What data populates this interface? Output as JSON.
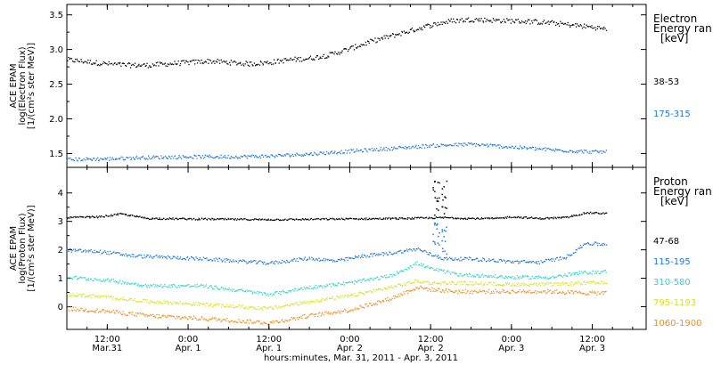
{
  "chart_data": [
    {
      "type": "scatter",
      "panel": "electron",
      "ylabel_lines": [
        "ACE EPAM",
        "log(Electron Flux)",
        "[1/(cm²s ster MeV)]"
      ],
      "ylim": [
        1.3,
        3.65
      ],
      "yticks": [
        1.5,
        2.0,
        2.5,
        3.0,
        3.5
      ],
      "ytick_labels": [
        "1.5",
        "2.0",
        "2.5",
        "3.0",
        "3.5"
      ],
      "legend": {
        "heading_lines": [
          "Electron",
          "Energy ran",
          "[keV]"
        ],
        "entries": [
          "38-53",
          "175-315"
        ]
      },
      "series": [
        {
          "name": "38-53",
          "color": "#000000",
          "noise": 0.035,
          "points": [
            [
              0,
              2.86
            ],
            [
              3,
              2.83
            ],
            [
              6,
              2.8
            ],
            [
              9,
              2.78
            ],
            [
              12,
              2.78
            ],
            [
              15,
              2.8
            ],
            [
              18,
              2.82
            ],
            [
              21,
              2.84
            ],
            [
              24,
              2.82
            ],
            [
              27,
              2.8
            ],
            [
              30,
              2.82
            ],
            [
              33,
              2.86
            ],
            [
              36,
              2.88
            ],
            [
              39,
              2.93
            ],
            [
              42,
              3.02
            ],
            [
              45,
              3.12
            ],
            [
              48,
              3.2
            ],
            [
              51,
              3.28
            ],
            [
              54,
              3.36
            ],
            [
              57,
              3.42
            ],
            [
              60,
              3.44
            ],
            [
              63,
              3.43
            ],
            [
              66,
              3.42
            ],
            [
              69,
              3.41
            ],
            [
              72,
              3.39
            ],
            [
              75,
              3.36
            ],
            [
              78,
              3.33
            ],
            [
              80,
              3.3
            ]
          ]
        },
        {
          "name": "175-315",
          "color": "#1f77d4",
          "noise": 0.025,
          "points": [
            [
              0,
              1.42
            ],
            [
              6,
              1.43
            ],
            [
              12,
              1.45
            ],
            [
              18,
              1.46
            ],
            [
              24,
              1.46
            ],
            [
              30,
              1.47
            ],
            [
              36,
              1.5
            ],
            [
              42,
              1.54
            ],
            [
              48,
              1.58
            ],
            [
              54,
              1.62
            ],
            [
              60,
              1.64
            ],
            [
              66,
              1.6
            ],
            [
              72,
              1.56
            ],
            [
              78,
              1.53
            ],
            [
              80,
              1.53
            ]
          ]
        }
      ]
    },
    {
      "type": "scatter",
      "panel": "proton",
      "ylabel_lines": [
        "ACE EPAM",
        "log(Proton Flux)",
        "[1/(cm²s ster MeV)]"
      ],
      "ylim": [
        -0.8,
        4.9
      ],
      "yticks": [
        0,
        1,
        2,
        3,
        4
      ],
      "ytick_labels": [
        "0",
        "1",
        "2",
        "3",
        "4"
      ],
      "legend": {
        "heading_lines": [
          "Proton",
          "Energy ran",
          "[keV]"
        ],
        "entries": [
          "47-68",
          "115-195",
          "310-580",
          "795-1193",
          "1060-1900"
        ]
      },
      "series": [
        {
          "name": "47-68",
          "color": "#000000",
          "noise": 0.03,
          "points": [
            [
              0,
              3.15
            ],
            [
              5,
              3.18
            ],
            [
              8,
              3.28
            ],
            [
              12,
              3.12
            ],
            [
              20,
              3.1
            ],
            [
              30,
              3.08
            ],
            [
              40,
              3.1
            ],
            [
              50,
              3.12
            ],
            [
              56,
              3.15
            ],
            [
              60,
              3.12
            ],
            [
              64,
              3.12
            ],
            [
              66,
              3.18
            ],
            [
              70,
              3.12
            ],
            [
              74,
              3.15
            ],
            [
              77,
              3.32
            ],
            [
              80,
              3.3
            ]
          ]
        },
        {
          "name": "115-195",
          "color": "#1f77d4",
          "noise": 0.06,
          "points": [
            [
              0,
              2.0
            ],
            [
              5,
              1.95
            ],
            [
              10,
              1.8
            ],
            [
              20,
              1.7
            ],
            [
              30,
              1.55
            ],
            [
              36,
              1.72
            ],
            [
              40,
              1.62
            ],
            [
              44,
              1.8
            ],
            [
              48,
              1.9
            ],
            [
              52,
              2.05
            ],
            [
              54,
              1.85
            ],
            [
              56,
              1.7
            ],
            [
              60,
              1.7
            ],
            [
              66,
              1.6
            ],
            [
              70,
              1.58
            ],
            [
              74,
              1.75
            ],
            [
              77,
              2.25
            ],
            [
              80,
              2.2
            ]
          ]
        },
        {
          "name": "310-580",
          "color": "#2ad6c8",
          "noise": 0.06,
          "points": [
            [
              0,
              1.05
            ],
            [
              6,
              0.95
            ],
            [
              12,
              0.75
            ],
            [
              20,
              0.75
            ],
            [
              30,
              0.45
            ],
            [
              36,
              0.7
            ],
            [
              42,
              0.85
            ],
            [
              48,
              1.1
            ],
            [
              52,
              1.55
            ],
            [
              54,
              1.35
            ],
            [
              58,
              1.15
            ],
            [
              66,
              1.05
            ],
            [
              72,
              1.05
            ],
            [
              76,
              1.2
            ],
            [
              80,
              1.25
            ]
          ]
        },
        {
          "name": "795-1193",
          "color": "#d8e21a",
          "noise": 0.06,
          "points": [
            [
              0,
              0.45
            ],
            [
              6,
              0.35
            ],
            [
              12,
              0.2
            ],
            [
              20,
              0.1
            ],
            [
              30,
              -0.05
            ],
            [
              36,
              0.2
            ],
            [
              42,
              0.4
            ],
            [
              48,
              0.7
            ],
            [
              52,
              0.92
            ],
            [
              54,
              0.85
            ],
            [
              58,
              0.85
            ],
            [
              66,
              0.8
            ],
            [
              72,
              0.8
            ],
            [
              76,
              0.85
            ],
            [
              80,
              0.85
            ]
          ]
        },
        {
          "name": "1060-1900",
          "color": "#f08c1e",
          "noise": 0.07,
          "points": [
            [
              0,
              -0.05
            ],
            [
              6,
              -0.15
            ],
            [
              12,
              -0.3
            ],
            [
              20,
              -0.4
            ],
            [
              30,
              -0.55
            ],
            [
              36,
              -0.3
            ],
            [
              42,
              -0.1
            ],
            [
              48,
              0.3
            ],
            [
              52,
              0.7
            ],
            [
              54,
              0.62
            ],
            [
              58,
              0.55
            ],
            [
              66,
              0.55
            ],
            [
              72,
              0.55
            ],
            [
              76,
              0.5
            ],
            [
              80,
              0.5
            ]
          ]
        }
      ],
      "spike": {
        "x_range": [
          54,
          56.5
        ],
        "black_range": [
          3.2,
          4.7
        ],
        "blue_range": [
          1.8,
          3.0
        ]
      }
    }
  ],
  "x_axis": {
    "range_hours": [
      0,
      86
    ],
    "tick_hours": [
      6,
      18,
      30,
      42,
      54,
      66,
      78
    ],
    "tick_labels": [
      [
        "12:00",
        "Mar.31"
      ],
      [
        "0:00",
        "Apr. 1"
      ],
      [
        "12:00",
        "Apr. 1"
      ],
      [
        "0:00",
        "Apr. 2"
      ],
      [
        "12:00",
        "Apr. 2"
      ],
      [
        "0:00",
        "Apr. 3"
      ],
      [
        "12:00",
        "Apr. 3"
      ]
    ],
    "title": "hours:minutes, Mar. 31, 2011 - Apr.  3, 2011"
  }
}
